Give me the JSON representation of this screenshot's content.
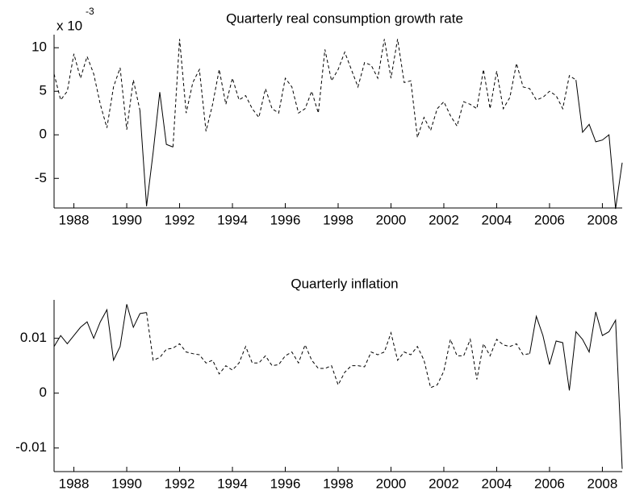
{
  "chart_data": [
    {
      "type": "line",
      "title": "Quarterly real consumption growth rate",
      "axis_multiplier": "x 10",
      "axis_multiplier_exponent": "-3",
      "x": [
        1987.25,
        1987.5,
        1987.75,
        1988,
        1988.25,
        1988.5,
        1988.75,
        1989,
        1989.25,
        1989.5,
        1989.75,
        1990,
        1990.25,
        1990.5,
        1990.75,
        1991,
        1991.25,
        1991.5,
        1991.75,
        1992,
        1992.25,
        1992.5,
        1992.75,
        1993,
        1993.25,
        1993.5,
        1993.75,
        1994,
        1994.25,
        1994.5,
        1994.75,
        1995,
        1995.25,
        1995.5,
        1995.75,
        1996,
        1996.25,
        1996.5,
        1996.75,
        1997,
        1997.25,
        1997.5,
        1997.75,
        1998,
        1998.25,
        1998.5,
        1998.75,
        1999,
        1999.25,
        1999.5,
        1999.75,
        2000,
        2000.25,
        2000.5,
        2000.75,
        2001,
        2001.25,
        2001.5,
        2001.75,
        2002,
        2002.25,
        2002.5,
        2002.75,
        2003,
        2003.25,
        2003.5,
        2003.75,
        2004,
        2004.25,
        2004.5,
        2004.75,
        2005,
        2005.25,
        2005.5,
        2005.75,
        2006,
        2006.25,
        2006.5,
        2006.75,
        2007,
        2007.25,
        2007.5,
        2007.75,
        2008,
        2008.25,
        2008.5,
        2008.75
      ],
      "series": [
        {
          "color": "#000000",
          "line_style": "dashed",
          "values": [
            7,
            4,
            5,
            9.3,
            6.5,
            9,
            7,
            3.5,
            0.8,
            5.5,
            7.7,
            0.6,
            6.3,
            2.8,
            null,
            null,
            null,
            null,
            -1.4,
            11,
            2.5,
            6,
            7.5,
            0.4,
            3.5,
            7.5,
            3.5,
            6.5,
            4,
            4.5,
            3,
            2,
            5.3,
            3,
            2.5,
            6.5,
            5.5,
            2.5,
            3,
            5,
            2.5,
            9.8,
            6.2,
            7.5,
            9.5,
            7.5,
            5.5,
            8.3,
            8,
            6.5,
            11,
            6.5,
            11,
            6,
            6.2,
            -0.3,
            2,
            0.5,
            3,
            3.8,
            2.2,
            1,
            3.8,
            3.5,
            3,
            7.5,
            3,
            7.3,
            3,
            4.3,
            8.2,
            5.5,
            5.3,
            4,
            4.3,
            5,
            4.5,
            3,
            6.8,
            6.3,
            null,
            null,
            null,
            null,
            null,
            null,
            null
          ]
        },
        {
          "color": "#000000",
          "line_style": "solid",
          "values": [
            null,
            null,
            null,
            null,
            null,
            null,
            null,
            null,
            null,
            null,
            null,
            null,
            null,
            2.8,
            -8.2,
            -2,
            4.9,
            -1.1,
            -1.4,
            null,
            null,
            null,
            null,
            null,
            null,
            null,
            null,
            null,
            null,
            null,
            null,
            null,
            null,
            null,
            null,
            null,
            null,
            null,
            null,
            null,
            null,
            null,
            null,
            null,
            null,
            null,
            null,
            null,
            null,
            null,
            null,
            null,
            null,
            null,
            null,
            null,
            null,
            null,
            null,
            null,
            null,
            null,
            null,
            null,
            null,
            null,
            null,
            null,
            null,
            null,
            null,
            null,
            null,
            null,
            null,
            null,
            null,
            null,
            null,
            6.3,
            0.3,
            1.2,
            -0.8,
            -0.6,
            0,
            -8.5,
            -3.2
          ]
        }
      ],
      "xlim": [
        1987.25,
        2008.75
      ],
      "xticks": [
        1988,
        1990,
        1992,
        1994,
        1996,
        1998,
        2000,
        2002,
        2004,
        2006,
        2008
      ],
      "ylim": [
        -8.4,
        11.5
      ],
      "yticks": [
        -5,
        0,
        5,
        10
      ]
    },
    {
      "type": "line",
      "title": "Quarterly inflation",
      "x": [
        1987.25,
        1987.5,
        1987.75,
        1988,
        1988.25,
        1988.5,
        1988.75,
        1989,
        1989.25,
        1989.5,
        1989.75,
        1990,
        1990.25,
        1990.5,
        1990.75,
        1991,
        1991.25,
        1991.5,
        1991.75,
        1992,
        1992.25,
        1992.5,
        1992.75,
        1993,
        1993.25,
        1993.5,
        1993.75,
        1994,
        1994.25,
        1994.5,
        1994.75,
        1995,
        1995.25,
        1995.5,
        1995.75,
        1996,
        1996.25,
        1996.5,
        1996.75,
        1997,
        1997.25,
        1997.5,
        1997.75,
        1998,
        1998.25,
        1998.5,
        1998.75,
        1999,
        1999.25,
        1999.5,
        1999.75,
        2000,
        2000.25,
        2000.5,
        2000.75,
        2001,
        2001.25,
        2001.5,
        2001.75,
        2002,
        2002.25,
        2002.5,
        2002.75,
        2003,
        2003.25,
        2003.5,
        2003.75,
        2004,
        2004.25,
        2004.5,
        2004.75,
        2005,
        2005.25,
        2005.5,
        2005.75,
        2006,
        2006.25,
        2006.5,
        2006.75,
        2007,
        2007.25,
        2007.5,
        2007.75,
        2008,
        2008.25,
        2008.5,
        2008.75
      ],
      "series": [
        {
          "color": "#000000",
          "line_style": "dashed",
          "values": [
            null,
            null,
            null,
            null,
            null,
            null,
            null,
            null,
            null,
            null,
            null,
            null,
            null,
            null,
            0.0147,
            0.006,
            0.0065,
            0.008,
            0.0082,
            0.009,
            0.0075,
            0.0072,
            0.007,
            0.0055,
            0.006,
            0.0035,
            0.005,
            0.0042,
            0.0055,
            0.0085,
            0.0055,
            0.0055,
            0.0068,
            0.005,
            0.0052,
            0.0068,
            0.0075,
            0.0055,
            0.0088,
            0.006,
            0.0045,
            0.0045,
            0.005,
            0.0015,
            0.0038,
            0.005,
            0.005,
            0.0048,
            0.0075,
            0.007,
            0.0075,
            0.011,
            0.006,
            0.0075,
            0.007,
            0.0085,
            0.006,
            0.001,
            0.0015,
            0.004,
            0.0098,
            0.0068,
            0.0068,
            0.0098,
            0.0025,
            0.009,
            0.0068,
            0.0098,
            0.0088,
            0.0085,
            0.009,
            0.007,
            0.0072,
            null,
            null,
            null,
            null,
            null,
            null,
            null,
            null,
            null,
            null,
            null,
            null,
            null,
            null
          ]
        },
        {
          "color": "#000000",
          "line_style": "solid",
          "values": [
            0.0085,
            0.0105,
            0.009,
            0.0105,
            0.012,
            0.013,
            0.01,
            0.013,
            0.0152,
            0.006,
            0.0085,
            0.0162,
            0.012,
            0.0145,
            0.0147,
            null,
            null,
            null,
            null,
            null,
            null,
            null,
            null,
            null,
            null,
            null,
            null,
            null,
            null,
            null,
            null,
            null,
            null,
            null,
            null,
            null,
            null,
            null,
            null,
            null,
            null,
            null,
            null,
            null,
            null,
            null,
            null,
            null,
            null,
            null,
            null,
            null,
            null,
            null,
            null,
            null,
            null,
            null,
            null,
            null,
            null,
            null,
            null,
            null,
            null,
            null,
            null,
            null,
            null,
            null,
            null,
            null,
            0.0072,
            0.014,
            0.0105,
            0.0052,
            0.0095,
            0.0092,
            0.0005,
            0.0112,
            0.0098,
            0.0075,
            0.0148,
            0.0105,
            0.0112,
            0.0133,
            -0.0138
          ]
        }
      ],
      "xlim": [
        1987.25,
        2008.75
      ],
      "xticks": [
        1988,
        1990,
        1992,
        1994,
        1996,
        1998,
        2000,
        2002,
        2004,
        2006,
        2008
      ],
      "ylim": [
        -0.0143,
        0.017
      ],
      "yticks": [
        -0.01,
        0,
        0.01
      ]
    }
  ]
}
